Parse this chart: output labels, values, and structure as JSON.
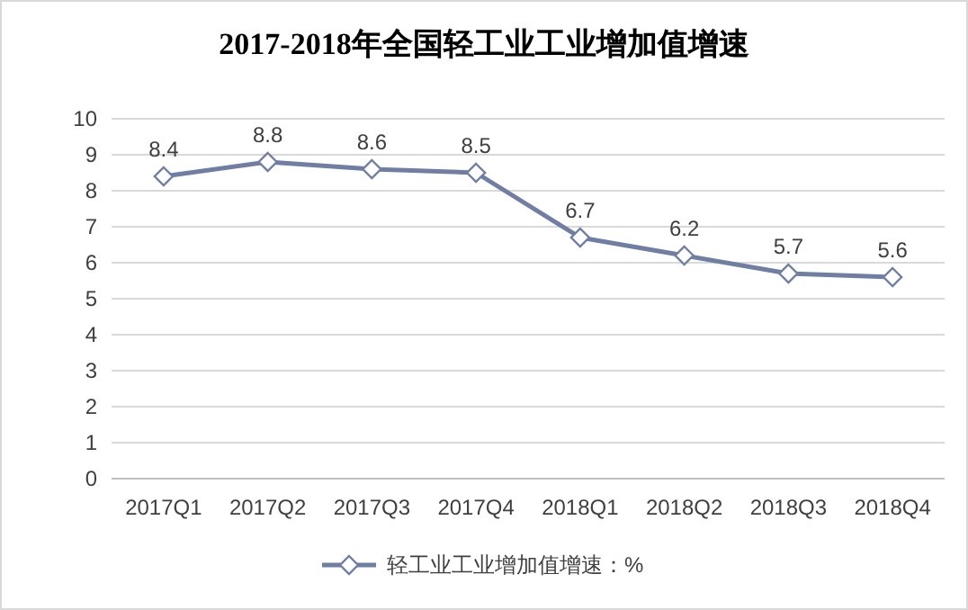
{
  "chart_data": {
    "type": "line",
    "title": "2017-2018年全国轻工业工业增加值增速",
    "categories": [
      "2017Q1",
      "2017Q2",
      "2017Q3",
      "2017Q4",
      "2018Q1",
      "2018Q2",
      "2018Q3",
      "2018Q4"
    ],
    "series": [
      {
        "name": "轻工业工业增加值增速：%",
        "color": "#6f7ea6",
        "values": [
          8.4,
          8.8,
          8.6,
          8.5,
          6.7,
          6.2,
          5.7,
          5.6
        ]
      }
    ],
    "ylim": [
      0,
      10
    ],
    "yticks": [
      0,
      1,
      2,
      3,
      4,
      5,
      6,
      7,
      8,
      9,
      10
    ],
    "grid": "y",
    "legend": "bottom",
    "marker": "diamond",
    "line_style": "solid",
    "data_labels": true
  }
}
